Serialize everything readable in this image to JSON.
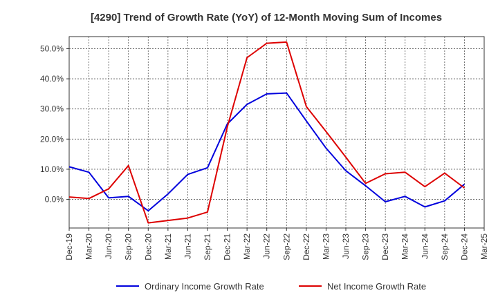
{
  "chart_data": {
    "type": "line",
    "title": "[4290]  Trend of Growth Rate (YoY) of 12-Month Moving Sum of Incomes",
    "xlabel": "",
    "ylabel": "",
    "categories": [
      "Dec-19",
      "Mar-20",
      "Jun-20",
      "Sep-20",
      "Dec-20",
      "Mar-21",
      "Jun-21",
      "Sep-21",
      "Dec-21",
      "Mar-22",
      "Jun-22",
      "Sep-22",
      "Dec-22",
      "Mar-23",
      "Jun-23",
      "Sep-23",
      "Dec-23",
      "Mar-24",
      "Jun-24",
      "Sep-24",
      "Dec-24",
      "Mar-25"
    ],
    "y_ticks": [
      0,
      10,
      20,
      30,
      40,
      50
    ],
    "y_tick_labels": [
      "0.0%",
      "10.0%",
      "20.0%",
      "30.0%",
      "40.0%",
      "50.0%"
    ],
    "ylim": [
      -9.5,
      54
    ],
    "grid": true,
    "legend_position": "bottom",
    "series": [
      {
        "name": "Ordinary Income Growth Rate",
        "color": "#0000dd",
        "values": [
          10.8,
          9.0,
          0.5,
          1.0,
          -3.8,
          1.8,
          8.3,
          10.5,
          25.0,
          31.5,
          35.0,
          35.3,
          26.0,
          17.0,
          9.5,
          4.5,
          -0.8,
          1.0,
          -2.5,
          -0.5,
          5.0,
          null
        ]
      },
      {
        "name": "Net Income Growth Rate",
        "color": "#dd0000",
        "values": [
          0.8,
          0.3,
          3.5,
          11.2,
          -7.8,
          -7.0,
          -6.2,
          -4.2,
          24.0,
          47.0,
          51.8,
          52.2,
          30.8,
          22.5,
          14.0,
          5.3,
          8.5,
          9.0,
          4.2,
          8.7,
          3.8,
          null
        ]
      }
    ]
  }
}
